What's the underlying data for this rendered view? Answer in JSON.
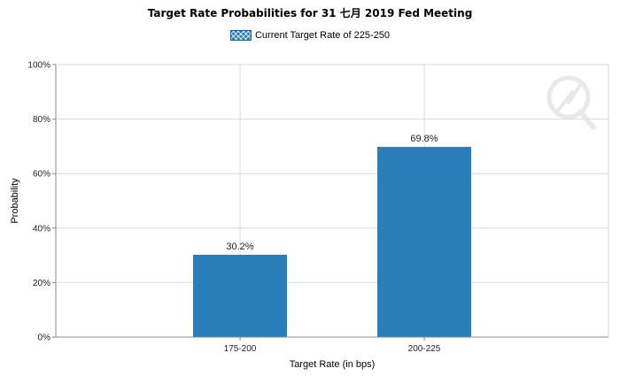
{
  "chart_data": {
    "type": "bar",
    "title": "Target Rate Probabilities for 31 七月 2019  Fed Meeting",
    "legend": {
      "label": "Current Target Rate of 225-250",
      "placement": "top-center"
    },
    "categories": [
      "175-200",
      "200-225"
    ],
    "values": [
      30.2,
      69.8
    ],
    "data_labels": [
      "30.2%",
      "69.8%"
    ],
    "xlabel": "Target Rate (in bps)",
    "ylabel": "Probability",
    "ylim": [
      0,
      100
    ],
    "yticks": [
      "0%",
      "20%",
      "40%",
      "60%",
      "80%",
      "100%"
    ],
    "grid": true,
    "colors": {
      "bar": "#2a7fba",
      "grid": "#d9d9d9",
      "axis": "#888888"
    },
    "watermark_icon": "q-logo-icon"
  }
}
